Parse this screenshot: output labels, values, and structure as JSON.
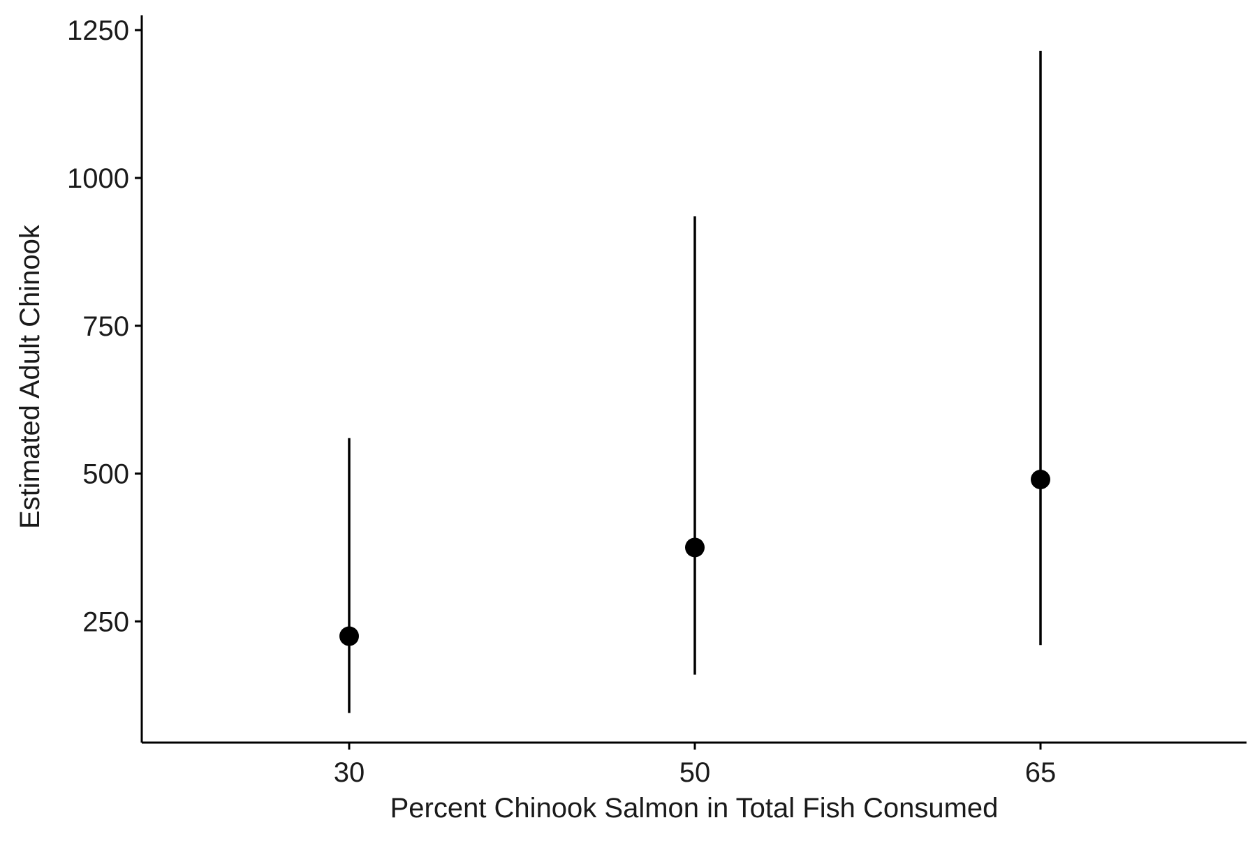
{
  "chart_data": {
    "type": "scatter",
    "title": "",
    "xlabel": "Percent Chinook Salmon in Total Fish Consumed",
    "ylabel": "Estimated Adult Chinook",
    "categories": [
      "30",
      "50",
      "65"
    ],
    "x_tick_labels": [
      "30",
      "50",
      "65"
    ],
    "y_ticks": [
      250,
      500,
      750,
      1000,
      1250
    ],
    "y_tick_labels": [
      "250",
      "500",
      "750",
      "1000",
      "1250"
    ],
    "ylim": [
      45,
      1275
    ],
    "grid": false,
    "legend": "none",
    "series": [
      {
        "values": [
          225,
          375,
          490
        ],
        "lower": [
          95,
          160,
          210
        ],
        "upper": [
          560,
          935,
          1215
        ]
      }
    ],
    "colors": {
      "point": "#000000",
      "errorbar": "#000000",
      "axis": "#000000"
    }
  }
}
